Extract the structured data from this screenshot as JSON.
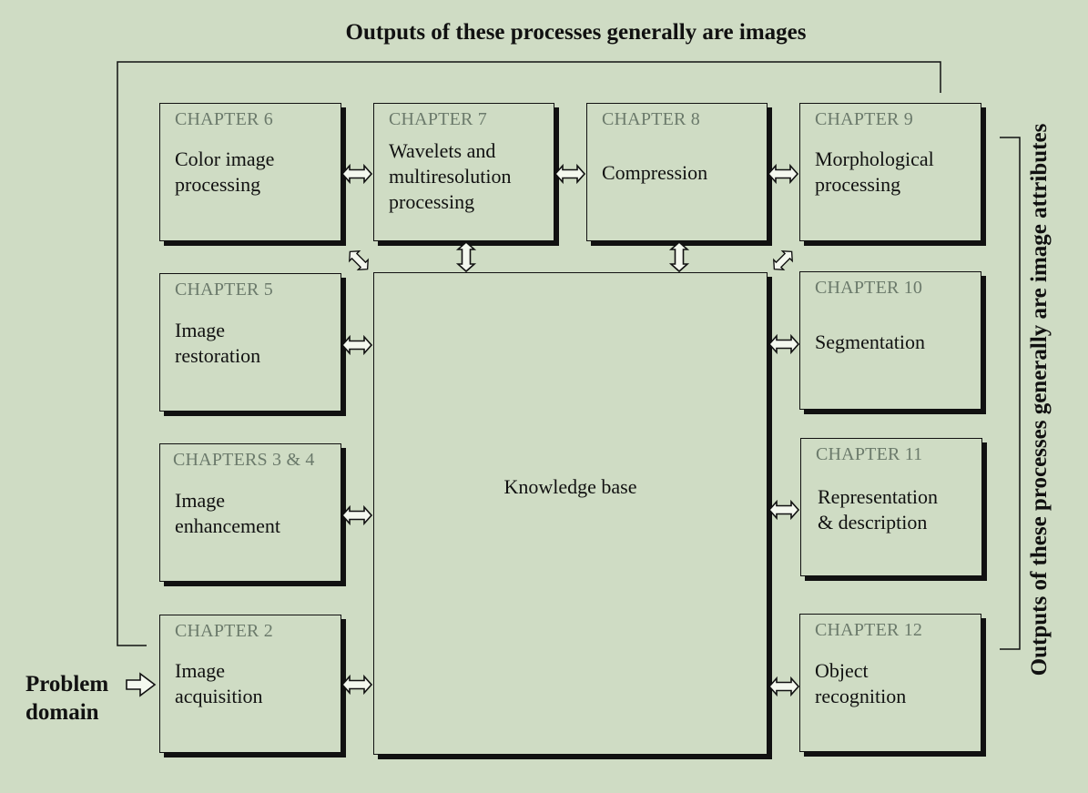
{
  "titles": {
    "top": "Outputs of these processes generally are images",
    "side": "Outputs of these processes generally are image attributes"
  },
  "problem_domain": "Problem\ndomain",
  "knowledge_base": "Knowledge base",
  "boxes": {
    "ch6": {
      "chapter": "CHAPTER 6",
      "label": "Color image\nprocessing"
    },
    "ch7": {
      "chapter": "CHAPTER 7",
      "label": "Wavelets and\nmultiresolution\nprocessing"
    },
    "ch8": {
      "chapter": "CHAPTER 8",
      "label": "Compression"
    },
    "ch9": {
      "chapter": "CHAPTER 9",
      "label": "Morphological\nprocessing"
    },
    "ch5": {
      "chapter": "CHAPTER 5",
      "label": "Image\nrestoration"
    },
    "ch10": {
      "chapter": "CHAPTER 10",
      "label": "Segmentation"
    },
    "ch34": {
      "chapter": "CHAPTERS 3 & 4",
      "label": "Image\nenhancement"
    },
    "ch11": {
      "chapter": "CHAPTER 11",
      "label": "Representation\n& description"
    },
    "ch2": {
      "chapter": "CHAPTER 2",
      "label": "Image\nacquisition"
    },
    "ch12": {
      "chapter": "CHAPTER 12",
      "label": "Object\nrecognition"
    }
  },
  "colors": {
    "background": "#cfdcc4",
    "ink": "#111111",
    "chapter_text": "#6b7a6b"
  }
}
